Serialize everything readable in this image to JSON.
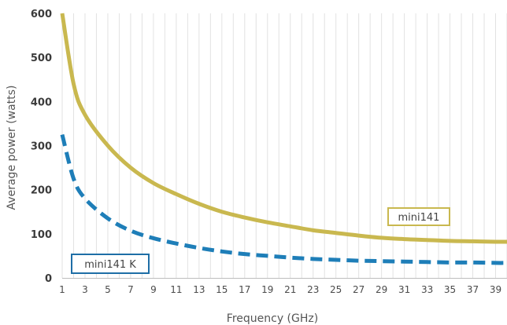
{
  "chart_data": {
    "type": "line",
    "title": "",
    "xlabel": "Frequency (GHz)",
    "ylabel": "Average power (watts)",
    "xlim": [
      1,
      40
    ],
    "ylim": [
      0,
      600
    ],
    "yticks": [
      0,
      100,
      200,
      300,
      400,
      500,
      600
    ],
    "xticks": [
      1,
      3,
      5,
      7,
      9,
      11,
      13,
      15,
      17,
      19,
      21,
      23,
      25,
      27,
      29,
      31,
      33,
      35,
      37,
      39
    ],
    "grid": "vertical",
    "series": [
      {
        "name": "mini141",
        "color": "#c9b84f",
        "style": "solid",
        "x": [
          1,
          2,
          3,
          5,
          7,
          9,
          11,
          13,
          15,
          17,
          19,
          21,
          23,
          25,
          27,
          29,
          31,
          33,
          35,
          37,
          39,
          40
        ],
        "y": [
          600,
          440,
          370,
          300,
          250,
          215,
          190,
          168,
          150,
          137,
          126,
          117,
          108,
          102,
          96,
          91,
          88,
          86,
          84,
          83,
          82,
          82
        ]
      },
      {
        "name": "mini141 K",
        "color": "#1e7eb8",
        "style": "dashed",
        "x": [
          1,
          2,
          3,
          5,
          7,
          9,
          11,
          13,
          15,
          17,
          19,
          21,
          23,
          25,
          27,
          29,
          31,
          33,
          35,
          37,
          39,
          40
        ],
        "y": [
          325,
          225,
          180,
          135,
          107,
          90,
          78,
          68,
          60,
          54,
          50,
          46,
          43,
          41,
          39,
          38,
          37,
          36,
          35,
          35,
          34,
          34
        ]
      }
    ],
    "annotations": [
      {
        "text": "mini141",
        "series": "mini141",
        "border_color": "#c9b84f"
      },
      {
        "text": "mini141 K",
        "series": "mini141 K",
        "border_color": "#1e6ea6"
      }
    ]
  }
}
